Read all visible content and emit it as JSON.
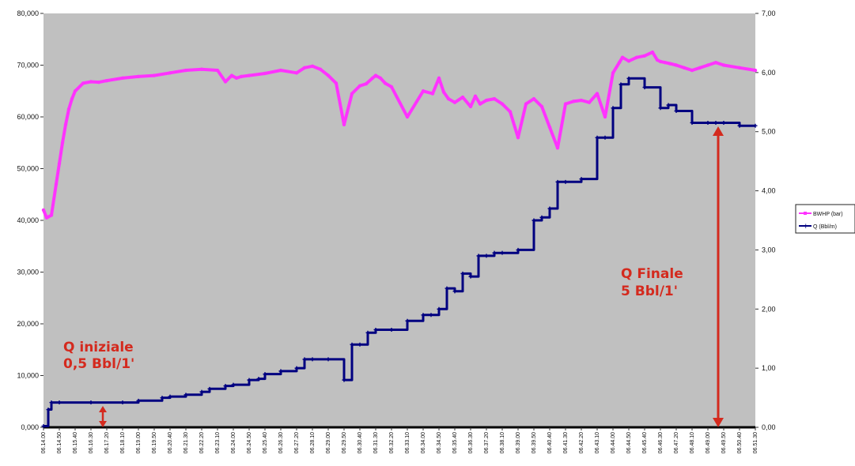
{
  "chart_data": {
    "type": "line",
    "title": "",
    "xlabel": "",
    "ylabel": "",
    "y2label": "",
    "background": "#c0c0c0",
    "grid": false,
    "legend_position": "right",
    "ylim": [
      0,
      80000
    ],
    "y2lim": [
      0,
      7
    ],
    "y_ticks": [
      "0,000",
      "10,000",
      "20,000",
      "30,000",
      "40,000",
      "50,000",
      "60,000",
      "70,000",
      "80,000"
    ],
    "y2_ticks": [
      "0,00",
      "1,00",
      "2,00",
      "3,00",
      "4,00",
      "5,00",
      "6,00",
      "7,00"
    ],
    "x_ticks": [
      "06.14.00",
      "06.14.50",
      "06.15.40",
      "06.16.30",
      "06.17.20",
      "06.18.10",
      "06.19.00",
      "06.19.50",
      "06.20.40",
      "06.21.30",
      "06.22.20",
      "06.23.10",
      "06.24.00",
      "06.24.50",
      "06.25.40",
      "06.26.30",
      "06.27.20",
      "06.28.10",
      "06.29.00",
      "06.29.50",
      "06.30.40",
      "06.31.30",
      "06.32.20",
      "06.33.10",
      "06.34.00",
      "06.34.50",
      "06.35.40",
      "06.36.30",
      "06.37.20",
      "06.38.10",
      "06.39.00",
      "06.39.50",
      "06.40.40",
      "06.41.30",
      "06.42.20",
      "06.43.10",
      "06.44.00",
      "06.44.50",
      "06.45.40",
      "06.46.30",
      "06.47.20",
      "06.48.10",
      "06.49.00",
      "06.49.50",
      "06.50.40",
      "06.51.30"
    ],
    "series": [
      {
        "name": "BWHP (bar)",
        "axis": "left",
        "color": "#ff33ff",
        "x": [
          0,
          0.2,
          0.5,
          0.8,
          1.0,
          1.2,
          1.4,
          1.6,
          1.8,
          2.0,
          2.5,
          3.0,
          3.5,
          4.0,
          5.0,
          6.0,
          7.0,
          8.0,
          9.0,
          10.0,
          11.0,
          11.5,
          11.9,
          12.2,
          12.5,
          13.0,
          14.0,
          15.0,
          16.0,
          16.5,
          17.0,
          17.5,
          18.0,
          18.5,
          19.0,
          19.5,
          20.0,
          20.4,
          20.8,
          21.0,
          21.3,
          21.6,
          22.0,
          23.0,
          24.0,
          24.6,
          25.0,
          25.3,
          25.6,
          26.0,
          26.5,
          27.0,
          27.3,
          27.6,
          28.0,
          28.5,
          29.0,
          29.5,
          30.0,
          30.5,
          31.0,
          31.5,
          32.0,
          32.5,
          33.0,
          33.5,
          34.0,
          34.5,
          35.0,
          35.5,
          36.0,
          36.4,
          36.6,
          37.0,
          37.5,
          38.0,
          38.5,
          38.8,
          39.0,
          39.3,
          39.6,
          40.0,
          40.5,
          41.0,
          41.5,
          42.0,
          42.5,
          43.0,
          44.0,
          45.0
        ],
        "y": [
          42000,
          40500,
          41000,
          47000,
          51000,
          55000,
          58500,
          61500,
          63500,
          65000,
          66500,
          66800,
          66700,
          67000,
          67500,
          67800,
          68000,
          68500,
          69000,
          69200,
          69000,
          66800,
          68000,
          67500,
          67800,
          68000,
          68400,
          69000,
          68500,
          69500,
          69800,
          69200,
          68000,
          66500,
          58500,
          64500,
          66000,
          66400,
          67500,
          68000,
          67500,
          66500,
          65800,
          60000,
          65000,
          64500,
          67500,
          64800,
          63500,
          62800,
          63800,
          62000,
          64000,
          62500,
          63200,
          63500,
          62500,
          61000,
          56000,
          62500,
          63500,
          62000,
          58000,
          54000,
          62500,
          63000,
          63200,
          62800,
          64500,
          60000,
          68500,
          70500,
          71500,
          70800,
          71500,
          71800,
          72500,
          71000,
          70700,
          70500,
          70300,
          70000,
          69500,
          69000,
          69500,
          70000,
          70500,
          70000,
          69500,
          69000
        ]
      },
      {
        "name": "Q (Bbl/m)",
        "axis": "right",
        "color": "#000080",
        "x": [
          0,
          0.3,
          0.5,
          1.0,
          3.0,
          5.0,
          6.0,
          7.5,
          8.0,
          9.0,
          10.0,
          10.5,
          11.5,
          12.0,
          13.0,
          13.6,
          14.0,
          15.0,
          16.0,
          16.5,
          17.0,
          18.0,
          19.0,
          19.5,
          20.0,
          20.5,
          21.0,
          22.0,
          23.0,
          24.0,
          24.5,
          25.0,
          25.5,
          26.0,
          26.5,
          27.0,
          27.5,
          28.0,
          28.5,
          29.0,
          30.0,
          31.0,
          31.5,
          32.0,
          32.5,
          33.0,
          34.0,
          35.0,
          35.5,
          36.0,
          36.5,
          37.0,
          38.0,
          39.0,
          39.5,
          40.0,
          41.0,
          42.0,
          42.5,
          43.0,
          44.0,
          45.0
        ],
        "y": [
          0.02,
          0.3,
          0.42,
          0.42,
          0.42,
          0.42,
          0.45,
          0.5,
          0.52,
          0.55,
          0.6,
          0.65,
          0.7,
          0.72,
          0.8,
          0.82,
          0.9,
          0.95,
          1.0,
          1.15,
          1.15,
          1.15,
          0.8,
          1.4,
          1.4,
          1.6,
          1.65,
          1.65,
          1.8,
          1.9,
          1.9,
          2.0,
          2.35,
          2.3,
          2.6,
          2.55,
          2.9,
          2.9,
          2.95,
          2.95,
          3.0,
          3.5,
          3.55,
          3.7,
          4.15,
          4.15,
          4.2,
          4.9,
          4.9,
          5.4,
          5.8,
          5.9,
          5.75,
          5.4,
          5.45,
          5.35,
          5.15,
          5.15,
          5.15,
          5.15,
          5.1,
          5.1
        ]
      }
    ],
    "annotations": [
      {
        "lines": [
          "Q iniziale",
          "0,5 Bbl/1'"
        ]
      },
      {
        "lines": [
          "Q Finale",
          "5 Bbl/1'"
        ]
      }
    ]
  }
}
